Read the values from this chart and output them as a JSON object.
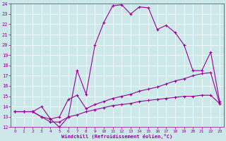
{
  "xlabel": "Windchill (Refroidissement éolien,°C)",
  "background_color": "#cce8e8",
  "line_color": "#990099",
  "x": [
    0,
    1,
    2,
    3,
    4,
    5,
    6,
    7,
    8,
    9,
    10,
    11,
    12,
    13,
    14,
    15,
    16,
    17,
    18,
    19,
    20,
    21,
    22,
    23
  ],
  "temp": [
    13.5,
    13.5,
    13.5,
    14.0,
    12.8,
    12.0,
    13.0,
    17.5,
    15.2,
    20.0,
    22.2,
    23.8,
    23.9,
    23.0,
    23.7,
    23.6,
    21.5,
    21.9,
    21.2,
    20.0,
    17.5,
    17.5,
    19.3,
    14.5
  ],
  "windchill": [
    13.5,
    13.5,
    13.5,
    13.0,
    12.8,
    13.0,
    14.7,
    15.1,
    13.8,
    14.2,
    14.5,
    14.8,
    15.0,
    15.2,
    15.5,
    15.7,
    15.9,
    16.2,
    16.5,
    16.7,
    17.0,
    17.2,
    17.3,
    14.3
  ],
  "wc2": [
    13.5,
    13.5,
    13.5,
    13.0,
    12.5,
    12.5,
    13.0,
    13.2,
    13.5,
    13.7,
    13.9,
    14.1,
    14.2,
    14.3,
    14.5,
    14.6,
    14.7,
    14.8,
    14.9,
    15.0,
    15.0,
    15.1,
    15.1,
    14.3
  ],
  "ylim": [
    12,
    24
  ],
  "xlim": [
    -0.5,
    23.5
  ],
  "yticks": [
    12,
    13,
    14,
    15,
    16,
    17,
    18,
    19,
    20,
    21,
    22,
    23,
    24
  ],
  "xticks": [
    0,
    1,
    2,
    3,
    4,
    5,
    6,
    7,
    8,
    9,
    10,
    11,
    12,
    13,
    14,
    15,
    16,
    17,
    18,
    19,
    20,
    21,
    22,
    23
  ]
}
